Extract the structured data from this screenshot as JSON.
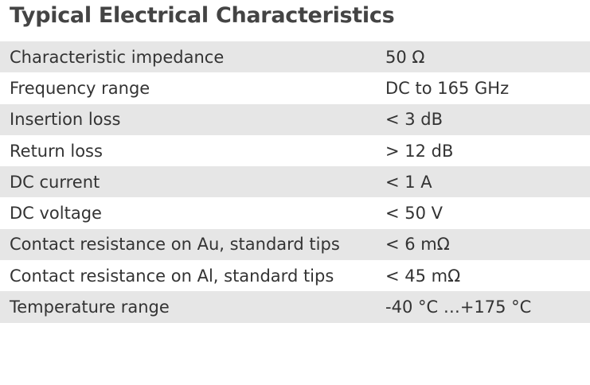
{
  "title": "Typical Electrical Characteristics",
  "table": {
    "rows": [
      [
        "Characteristic impedance",
        "50 Ω"
      ],
      [
        "Frequency range",
        "DC to 165 GHz"
      ],
      [
        "Insertion loss",
        "< 3 dB"
      ],
      [
        "Return loss",
        "> 12 dB"
      ],
      [
        "DC current",
        "< 1 A"
      ],
      [
        "DC voltage",
        "< 50 V"
      ],
      [
        "Contact resistance on Au, standard tips",
        "< 6 mΩ"
      ],
      [
        "Contact resistance on Al, standard tips",
        "< 45 mΩ"
      ],
      [
        "Temperature range",
        "-40 °C …+175 °C"
      ]
    ]
  }
}
